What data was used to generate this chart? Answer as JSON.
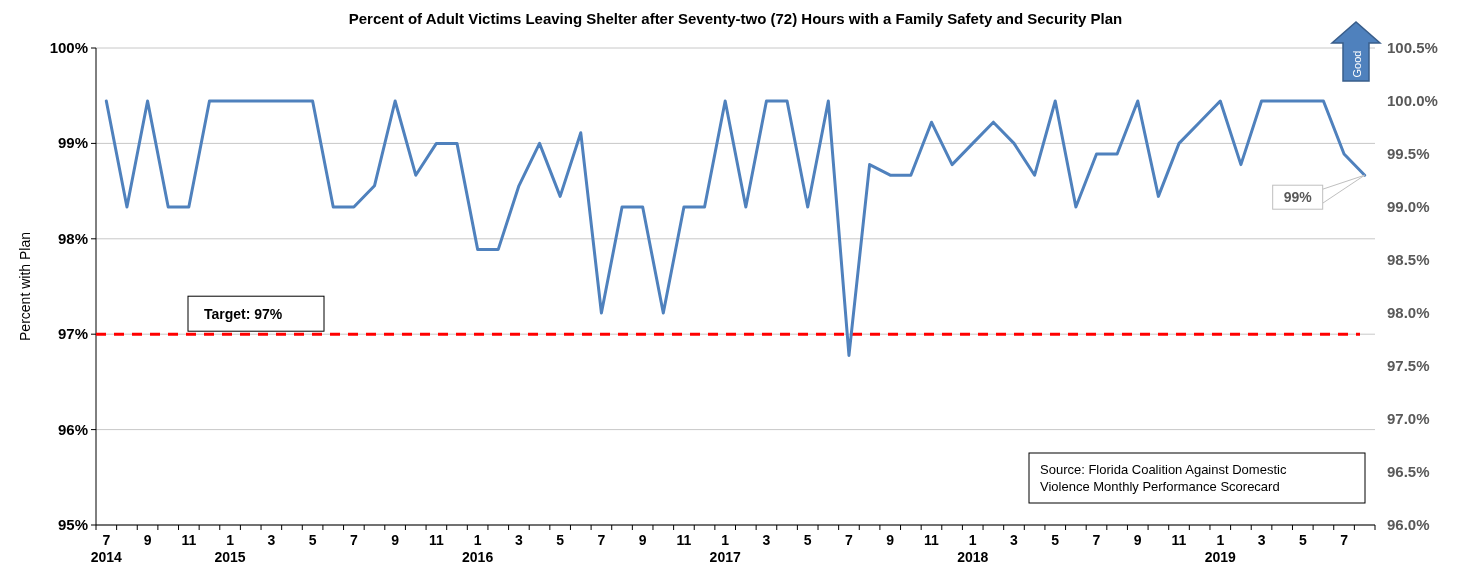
{
  "chart_data": {
    "type": "line",
    "title": "Percent of Adult Victims Leaving Shelter after Seventy-two (72) Hours with a Family Safety and Security Plan",
    "ylabel": "Percent with Plan",
    "categories": [
      "7\n2014",
      null,
      "9",
      null,
      "11",
      null,
      "1\n2015",
      null,
      "3",
      null,
      "5",
      null,
      "7",
      null,
      "9",
      null,
      "11",
      null,
      "1\n2016",
      null,
      "3",
      null,
      "5",
      null,
      "7",
      null,
      "9",
      null,
      "11",
      null,
      "1\n2017",
      null,
      "3",
      null,
      "5",
      null,
      "7",
      null,
      "9",
      null,
      "11",
      null,
      "1\n2018",
      null,
      "3",
      null,
      "5",
      null,
      "7",
      null,
      "9",
      null,
      "11",
      null,
      "1\n2019",
      null,
      "3",
      null,
      "5",
      null,
      "7",
      null
    ],
    "series": [
      {
        "color": "#4f81bd",
        "axis": "y2",
        "values": [
          100,
          99,
          100,
          99,
          99,
          100,
          100,
          100,
          100,
          100,
          100,
          99,
          99,
          99.2,
          100,
          99.3,
          99.6,
          99.6,
          98.6,
          98.6,
          99.2,
          99.6,
          99.1,
          99.7,
          98,
          99,
          99,
          98,
          99,
          99,
          100,
          99,
          100,
          100,
          99,
          100,
          97.6,
          99.4,
          99.3,
          99.3,
          99.8,
          99.4,
          99.6,
          99.8,
          99.6,
          99.3,
          100,
          99,
          99.5,
          99.5,
          100,
          99.1,
          99.6,
          99.8,
          100,
          99.4,
          100,
          100,
          100,
          100,
          99.5,
          99.3
        ],
        "value_labels": [
          null,
          null,
          null,
          null,
          null,
          null,
          null,
          null,
          null,
          null,
          null,
          null,
          null,
          null,
          null,
          null,
          null,
          null,
          null,
          null,
          null,
          null,
          null,
          null,
          null,
          null,
          null,
          null,
          null,
          null,
          null,
          null,
          null,
          null,
          null,
          null,
          null,
          null,
          null,
          null,
          null,
          null,
          null,
          null,
          null,
          null,
          null,
          null,
          null,
          null,
          null,
          null,
          null,
          null,
          null,
          null,
          null,
          null,
          null,
          null,
          null,
          "99%"
        ]
      }
    ],
    "ylim": [
      95,
      100
    ],
    "yticks": [
      {
        "value": 95,
        "label": "95%"
      },
      {
        "value": 96,
        "label": "96%"
      },
      {
        "value": 97,
        "label": "97%"
      },
      {
        "value": 98,
        "label": "98%"
      },
      {
        "value": 99,
        "label": "99%"
      },
      {
        "value": 100,
        "label": "100%"
      }
    ],
    "y2lim": [
      96,
      100.5
    ],
    "y2ticks": [
      {
        "value": 96,
        "label": "96.0%"
      },
      {
        "value": 96.5,
        "label": "96.5%"
      },
      {
        "value": 97,
        "label": "97.0%"
      },
      {
        "value": 97.5,
        "label": "97.5%"
      },
      {
        "value": 98,
        "label": "98.0%"
      },
      {
        "value": 98.5,
        "label": "98.5%"
      },
      {
        "value": 99,
        "label": "99.0%"
      },
      {
        "value": 99.5,
        "label": "99.5%"
      },
      {
        "value": 100,
        "label": "100.0%"
      },
      {
        "value": 100.5,
        "label": "100.5%"
      }
    ],
    "ref_lines": [
      {
        "axis": "y",
        "value": 97,
        "label": "Target: 97%",
        "color": "#ff0000",
        "line_style": "dashed"
      }
    ],
    "annotations": [
      "Source: Florida Coalition Against Domestic Violence Monthly Performance Scorecard",
      "Good"
    ],
    "grid": "y",
    "legend": false,
    "marker": "none",
    "line_style": "solid"
  }
}
